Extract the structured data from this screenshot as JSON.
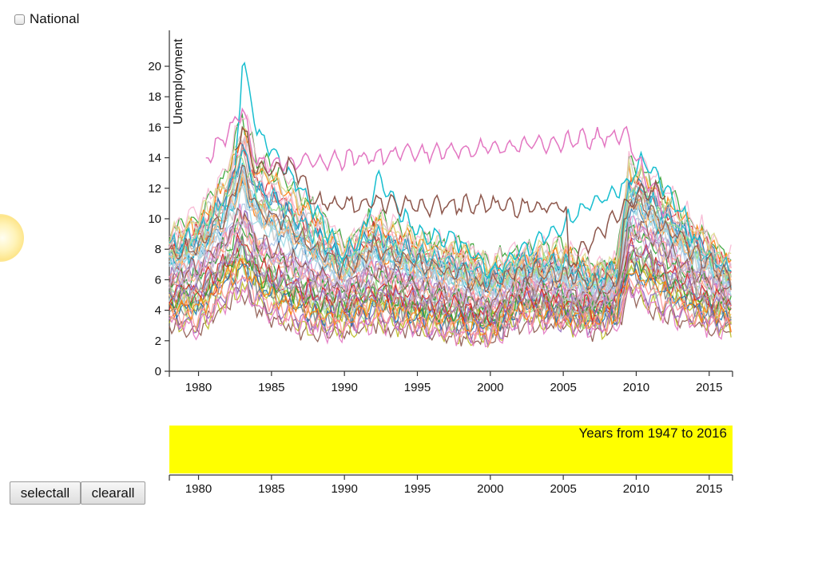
{
  "controls": {
    "national_label": "National",
    "national_checked": false,
    "selectall_label": "selectall",
    "clearall_label": "clearall"
  },
  "chart_data": [
    {
      "type": "line",
      "ylabel": "Unemployment",
      "xlabel": "",
      "xlim": [
        1978.0,
        2016.6
      ],
      "ylim": [
        0,
        20.5
      ],
      "x_ticks": [
        1980,
        1985,
        1990,
        1995,
        2000,
        2005,
        2010,
        2015
      ],
      "y_ticks": [
        0,
        2,
        4,
        6,
        8,
        10,
        12,
        14,
        16,
        18,
        20
      ],
      "grid": false,
      "legend": "none",
      "series_note_visible": false,
      "envelope": {
        "x": [
          1978,
          1980,
          1982,
          1983,
          1984,
          1986,
          1988,
          1990,
          1992,
          1995,
          1998,
          2000,
          2002,
          2005,
          2007,
          2008.7,
          2009.5,
          2010.5,
          2012,
          2014,
          2016.5
        ],
        "high": [
          9.5,
          10.5,
          13.5,
          17.5,
          14.5,
          13.0,
          11.0,
          8.5,
          10.5,
          9.0,
          8.5,
          7.5,
          8.0,
          8.5,
          7.0,
          7.5,
          14.0,
          13.5,
          12.0,
          10.0,
          7.5
        ],
        "mid": [
          6.0,
          6.5,
          8.5,
          10.0,
          8.0,
          7.0,
          6.0,
          5.2,
          6.5,
          5.5,
          4.8,
          4.2,
          5.6,
          5.0,
          4.7,
          5.2,
          9.2,
          9.0,
          7.8,
          6.2,
          5.0
        ],
        "low": [
          3.0,
          2.5,
          4.5,
          5.0,
          4.0,
          3.0,
          2.5,
          2.5,
          3.0,
          2.5,
          2.2,
          2.0,
          3.2,
          3.0,
          2.6,
          3.0,
          5.0,
          4.5,
          3.5,
          3.0,
          2.5
        ]
      },
      "series_colors": [
        "#1f77b4",
        "#aec7e8",
        "#ff7f0e",
        "#ffbb78",
        "#2ca02c",
        "#98df8a",
        "#d62728",
        "#ff9896",
        "#9467bd",
        "#c5b0d5",
        "#8c564b",
        "#c49c94",
        "#e377c2",
        "#f7b6d2",
        "#7f7f7f",
        "#c7c7c7",
        "#bcbd22",
        "#dbdb8d",
        "#17becf",
        "#9edae5"
      ],
      "series_count": 52,
      "highlights": [
        {
          "color": "#17becf",
          "points": [
            [
              1982.5,
              13.5
            ],
            [
              1983.0,
              20.0
            ],
            [
              1983.3,
              19.5
            ],
            [
              1984,
              15.5
            ],
            [
              1985,
              14.5
            ],
            [
              1987,
              12.0
            ],
            [
              1988,
              10.5
            ],
            [
              1990,
              7.5
            ],
            [
              1991.5,
              9.5
            ],
            [
              1992.2,
              12.8
            ],
            [
              1993,
              11.5
            ],
            [
              1995,
              9.0
            ],
            [
              1998,
              8.5
            ],
            [
              2000,
              6.5
            ],
            [
              2009.5,
              12.5
            ],
            [
              2010.5,
              13.8
            ],
            [
              2012,
              12.0
            ],
            [
              2014,
              9.0
            ]
          ]
        },
        {
          "color": "#e377c2",
          "points": [
            [
              1980.5,
              14.0
            ],
            [
              1982,
              15.5
            ],
            [
              1983.0,
              17.2
            ],
            [
              1984,
              13.5
            ],
            [
              2009.5,
              15.4
            ],
            [
              2010.5,
              13.0
            ],
            [
              2012,
              10.5
            ]
          ]
        },
        {
          "color": "#8c564b",
          "points": [
            [
              1982.5,
              14.5
            ],
            [
              1983.0,
              16.0
            ],
            [
              1984,
              13.0
            ],
            [
              1986.5,
              13.5
            ],
            [
              1988,
              11.0
            ],
            [
              2005.2,
              10.8
            ],
            [
              2005.4,
              7.0
            ],
            [
              2010.5,
              12.0
            ],
            [
              2012,
              11.5
            ]
          ]
        }
      ]
    },
    {
      "type": "line",
      "title": "Years from 1947 to 2016",
      "xlim": [
        1978.0,
        2016.6
      ],
      "x_ticks": [
        1980,
        1985,
        1990,
        1995,
        2000,
        2005,
        2010,
        2015
      ],
      "brush_color": "#ffff00"
    }
  ],
  "colors": {
    "axis": "#333333",
    "brush": "#ffff00"
  }
}
